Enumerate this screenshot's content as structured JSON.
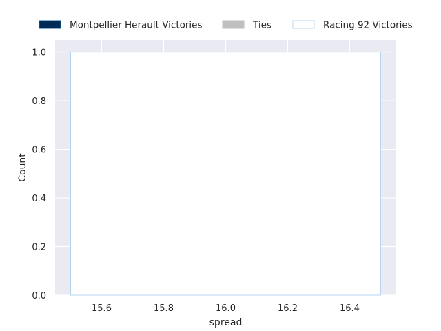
{
  "chart_data": {
    "type": "bar",
    "title": "",
    "xlabel": "spread",
    "ylabel": "Count",
    "xlim": [
      15.45,
      16.55
    ],
    "ylim": [
      0,
      1.05
    ],
    "xticks": [
      15.6,
      15.8,
      16.0,
      16.2,
      16.4
    ],
    "xtick_labels": [
      "15.6",
      "15.8",
      "16.0",
      "16.2",
      "16.4"
    ],
    "yticks": [
      0.0,
      0.2,
      0.4,
      0.6,
      0.8,
      1.0
    ],
    "ytick_labels": [
      "0.0",
      "0.2",
      "0.4",
      "0.6",
      "0.8",
      "1.0"
    ],
    "grid": true,
    "legend_position": "top",
    "series": [
      {
        "name": "Montpellier Herault Victories",
        "fill": "#002b55",
        "edge": "#0a63a8",
        "bins": []
      },
      {
        "name": "Ties",
        "fill": "#c0c0c0",
        "edge": "#c0c0c0",
        "bins": []
      },
      {
        "name": "Racing 92 Victories",
        "fill": "#ffffff",
        "edge": "#b6d4f0",
        "bins": [
          {
            "x_start": 15.5,
            "x_end": 16.5,
            "count": 1
          }
        ]
      }
    ],
    "colors": {
      "plot_background": "#e9eaf2",
      "grid": "#ffffff",
      "text": "#262626"
    }
  }
}
